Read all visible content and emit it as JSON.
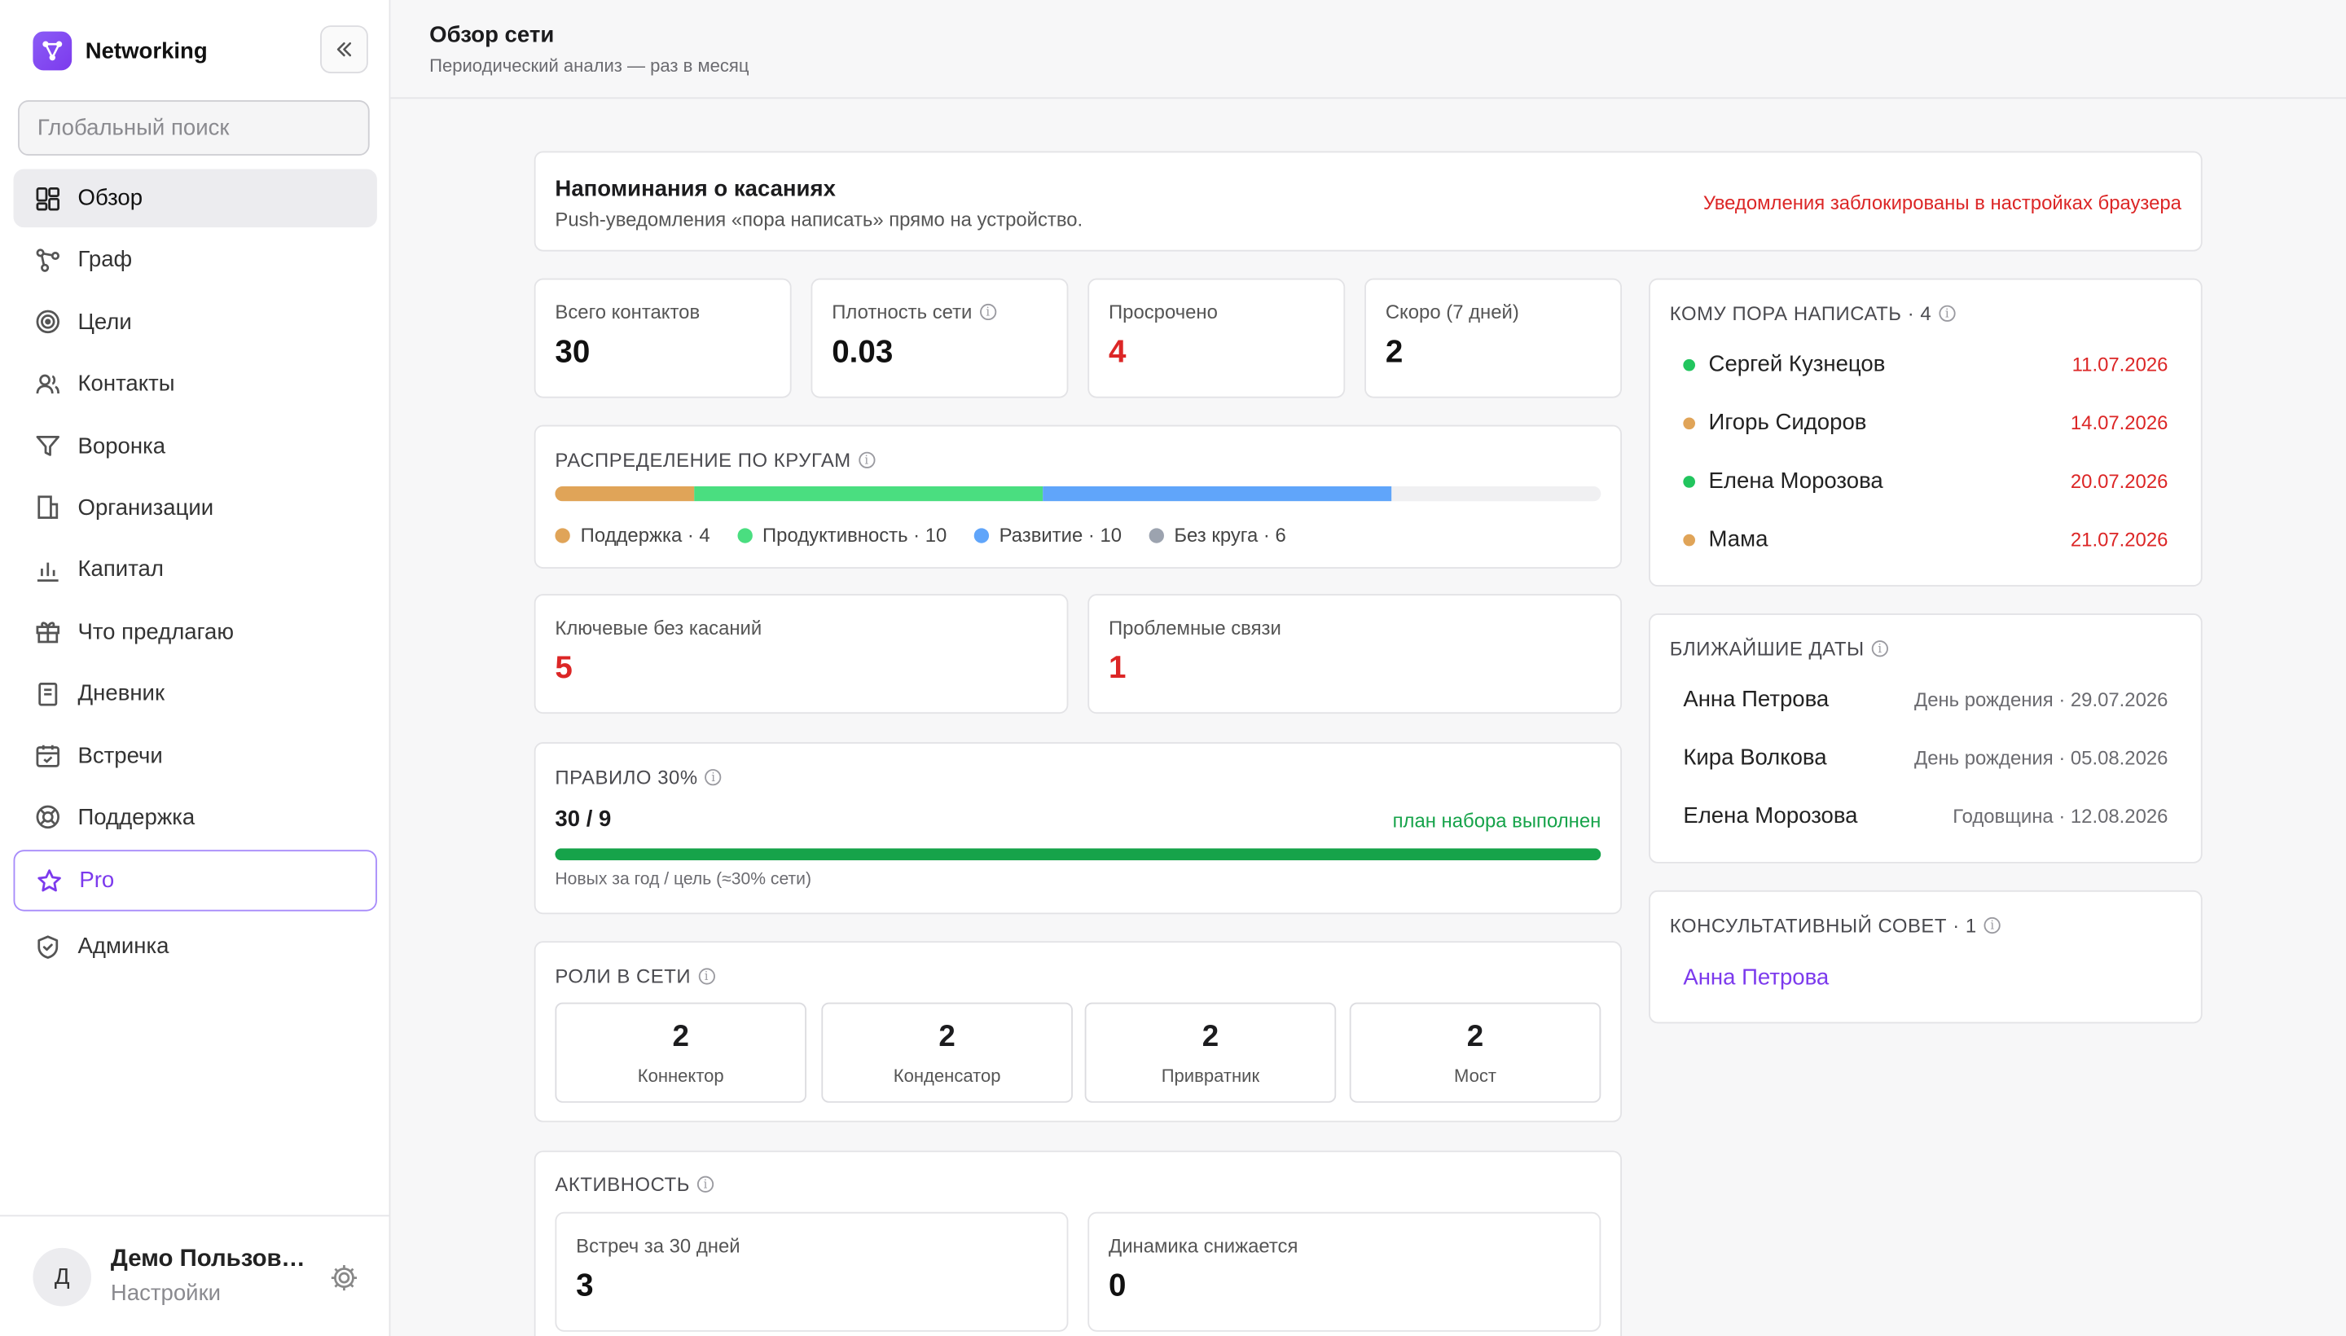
{
  "app": {
    "name": "Networking"
  },
  "search": {
    "placeholder": "Глобальный поиск"
  },
  "nav": [
    {
      "label": "Обзор",
      "icon": "dashboard-icon"
    },
    {
      "label": "Граф",
      "icon": "graph-icon"
    },
    {
      "label": "Цели",
      "icon": "target-icon"
    },
    {
      "label": "Контакты",
      "icon": "users-icon"
    },
    {
      "label": "Воронка",
      "icon": "funnel-icon"
    },
    {
      "label": "Организации",
      "icon": "building-icon"
    },
    {
      "label": "Капитал",
      "icon": "bar-chart-icon"
    },
    {
      "label": "Что предлагаю",
      "icon": "gift-icon"
    },
    {
      "label": "Дневник",
      "icon": "notebook-icon"
    },
    {
      "label": "Встречи",
      "icon": "calendar-icon"
    },
    {
      "label": "Поддержка",
      "icon": "lifebuoy-icon"
    },
    {
      "label": "Pro",
      "icon": "star-icon"
    },
    {
      "label": "Админка",
      "icon": "shield-icon"
    }
  ],
  "user": {
    "initial": "Д",
    "name": "Демо Пользователь",
    "sub": "Настройки"
  },
  "header": {
    "title": "Обзор сети",
    "subtitle": "Периодический анализ — раз в месяц"
  },
  "reminders": {
    "title": "Напоминания о касаниях",
    "desc": "Push-уведомления «пора написать» прямо на устройство.",
    "status": "Уведомления заблокированы в настройках браузера"
  },
  "stats": {
    "total": {
      "label": "Всего контактов",
      "value": "30"
    },
    "density": {
      "label": "Плотность сети",
      "value": "0.03"
    },
    "overdue": {
      "label": "Просрочено",
      "value": "4"
    },
    "soon": {
      "label": "Скоро (7 дней)",
      "value": "2"
    }
  },
  "circles": {
    "title": "РАСПРЕДЕЛЕНИЕ ПО КРУГАМ",
    "total": 30,
    "items": [
      {
        "label": "Поддержка · 4",
        "count": 4,
        "color": "#e0a458"
      },
      {
        "label": "Продуктивность · 10",
        "count": 10,
        "color": "#4ade80"
      },
      {
        "label": "Развитие · 10",
        "count": 10,
        "color": "#60a5fa"
      },
      {
        "label": "Без круга · 6",
        "count": 6,
        "color": "#9ca3af"
      }
    ]
  },
  "key": {
    "label": "Ключевые без касаний",
    "value": "5"
  },
  "problem": {
    "label": "Проблемные связи",
    "value": "1"
  },
  "rule": {
    "title": "ПРАВИЛО 30%",
    "value": "30 / 9",
    "status": "план набора выполнен",
    "progress": 1.0,
    "note": "Новых за год / цель (≈30% сети)"
  },
  "roles": {
    "title": "РОЛИ В СЕТИ",
    "items": [
      {
        "count": "2",
        "label": "Коннектор"
      },
      {
        "count": "2",
        "label": "Конденсатор"
      },
      {
        "count": "2",
        "label": "Привратник"
      },
      {
        "count": "2",
        "label": "Мост"
      }
    ]
  },
  "activity": {
    "title": "АКТИВНОСТЬ",
    "meetings": {
      "label": "Встреч за 30 дней",
      "value": "3"
    },
    "trend": {
      "label": "Динамика снижается",
      "value": "0"
    }
  },
  "towrite": {
    "title": "КОМУ ПОРА НАПИСАТЬ · 4",
    "items": [
      {
        "name": "Сергей Кузнецов",
        "date": "11.07.2026",
        "color": "#22c55e"
      },
      {
        "name": "Игорь Сидоров",
        "date": "14.07.2026",
        "color": "#e0a458"
      },
      {
        "name": "Елена Морозова",
        "date": "20.07.2026",
        "color": "#22c55e"
      },
      {
        "name": "Мама",
        "date": "21.07.2026",
        "color": "#e0a458"
      }
    ]
  },
  "dates": {
    "title": "БЛИЖАЙШИЕ ДАТЫ",
    "items": [
      {
        "name": "Анна Петрова",
        "event": "День рождения · 29.07.2026"
      },
      {
        "name": "Кира Волкова",
        "event": "День рождения · 05.08.2026"
      },
      {
        "name": "Елена Морозова",
        "event": "Годовщина · 12.08.2026"
      }
    ]
  },
  "board": {
    "title": "КОНСУЛЬТАТИВНЫЙ СОВЕТ · 1",
    "member": "Анна Петрова"
  }
}
